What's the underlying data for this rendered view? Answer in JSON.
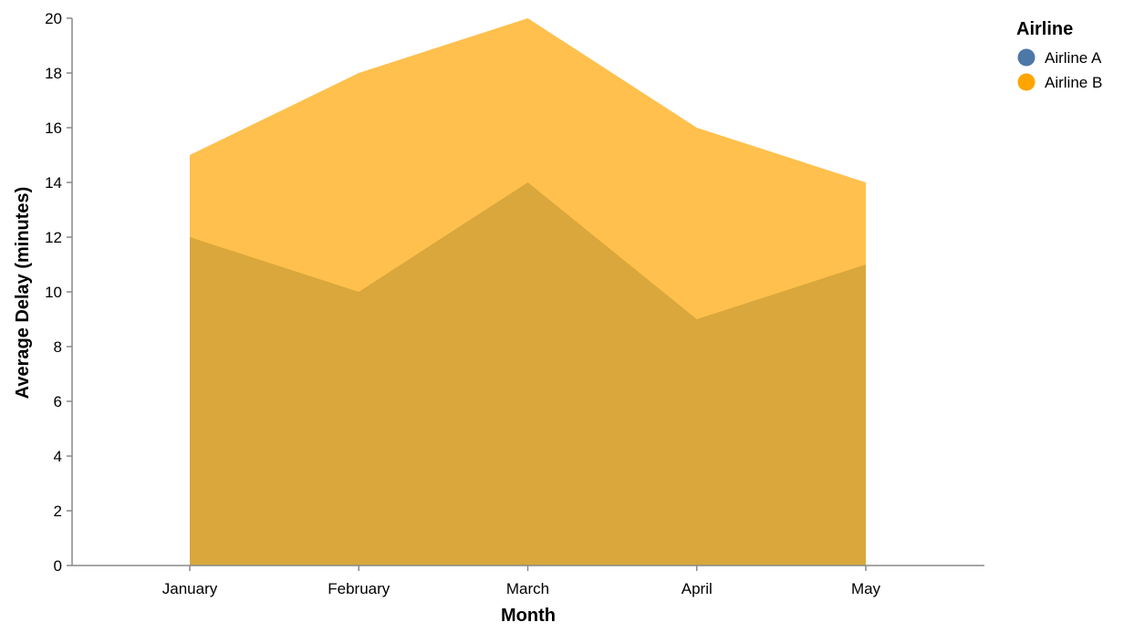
{
  "chart_data": {
    "type": "area",
    "categories": [
      "January",
      "February",
      "March",
      "April",
      "May"
    ],
    "series": [
      {
        "name": "Airline A",
        "values": [
          12,
          10,
          14,
          9,
          11
        ],
        "color": "#4c78a8"
      },
      {
        "name": "Airline B",
        "values": [
          15,
          18,
          20,
          16,
          14
        ],
        "color": "#ffa500"
      }
    ],
    "xlabel": "Month",
    "ylabel": "Average Delay (minutes)",
    "ylim": [
      0,
      20
    ],
    "yticks": [
      0,
      2,
      4,
      6,
      8,
      10,
      12,
      14,
      16,
      18,
      20
    ],
    "grid": false,
    "stacked": false,
    "legend": {
      "title": "Airline",
      "placement": "top-right"
    },
    "area_fill_overlap_color": "#d9a73b",
    "area_fill_upper_color": "#ffc04d"
  }
}
